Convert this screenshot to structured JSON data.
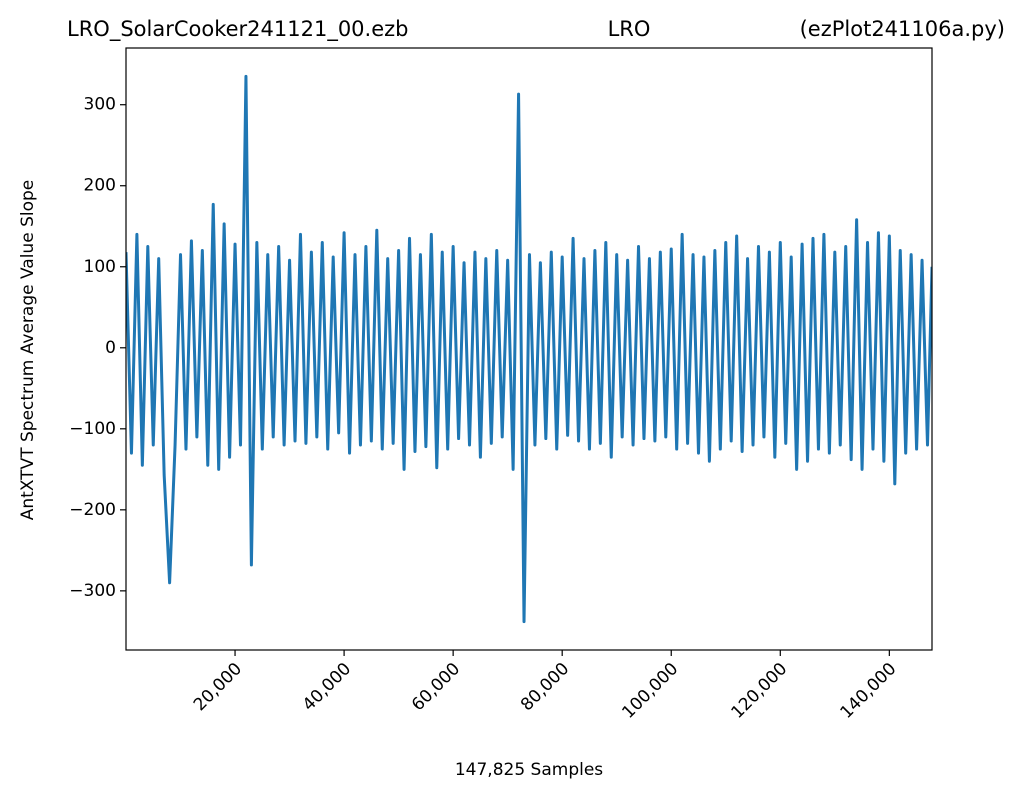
{
  "chart_data": {
    "type": "line",
    "title_left": "LRO_SolarCooker241121_00.ezb",
    "title_center": "LRO",
    "title_right": "(ezPlot241106a.py)",
    "xlabel": "147,825 Samples",
    "ylabel": "AntXTVT Spectrum Average Value Slope",
    "xlim": [
      1,
      147825
    ],
    "ylim": [
      -373,
      370
    ],
    "xticks": [
      {
        "value": 20000,
        "label": "20,000"
      },
      {
        "value": 40000,
        "label": "40,000"
      },
      {
        "value": 60000,
        "label": "60,000"
      },
      {
        "value": 80000,
        "label": "80,000"
      },
      {
        "value": 100000,
        "label": "100,000"
      },
      {
        "value": 120000,
        "label": "120,000"
      },
      {
        "value": 140000,
        "label": "140,000"
      }
    ],
    "yticks": [
      {
        "value": -300,
        "label": "−300"
      },
      {
        "value": -200,
        "label": "−200"
      },
      {
        "value": -100,
        "label": "−100"
      },
      0,
      100,
      200,
      300
    ],
    "x": [
      1,
      1000,
      2000,
      3000,
      4000,
      5000,
      6000,
      7000,
      8000,
      9000,
      10000,
      11000,
      12000,
      13000,
      14000,
      15000,
      16000,
      17000,
      18000,
      19000,
      20000,
      21000,
      22000,
      23000,
      24000,
      25000,
      26000,
      27000,
      28000,
      29000,
      30000,
      31000,
      32000,
      33000,
      34000,
      35000,
      36000,
      37000,
      38000,
      39000,
      40000,
      41000,
      42000,
      43000,
      44000,
      45000,
      46000,
      47000,
      48000,
      49000,
      50000,
      51000,
      52000,
      53000,
      54000,
      55000,
      56000,
      57000,
      58000,
      59000,
      60000,
      61000,
      62000,
      63000,
      64000,
      65000,
      66000,
      67000,
      68000,
      69000,
      70000,
      71000,
      72000,
      73000,
      74000,
      75000,
      76000,
      77000,
      78000,
      79000,
      80000,
      81000,
      82000,
      83000,
      84000,
      85000,
      86000,
      87000,
      88000,
      89000,
      90000,
      91000,
      92000,
      93000,
      94000,
      95000,
      96000,
      97000,
      98000,
      99000,
      100000,
      101000,
      102000,
      103000,
      104000,
      105000,
      106000,
      107000,
      108000,
      109000,
      110000,
      111000,
      112000,
      113000,
      114000,
      115000,
      116000,
      117000,
      118000,
      119000,
      120000,
      121000,
      122000,
      123000,
      124000,
      125000,
      126000,
      127000,
      128000,
      129000,
      130000,
      131000,
      132000,
      133000,
      134000,
      135000,
      136000,
      137000,
      138000,
      139000,
      140000,
      141000,
      142000,
      143000,
      144000,
      145000,
      146000,
      147000,
      147825
    ],
    "series": [
      {
        "color": "#1f77b4",
        "values": [
          118,
          -130,
          140,
          -145,
          125,
          -120,
          110,
          -157,
          -290,
          -120,
          115,
          -125,
          132,
          -110,
          120,
          -145,
          177,
          -150,
          153,
          -135,
          128,
          -120,
          335,
          -268,
          130,
          -125,
          115,
          -110,
          125,
          -120,
          108,
          -115,
          140,
          -118,
          118,
          -110,
          130,
          -125,
          112,
          -105,
          142,
          -130,
          115,
          -120,
          125,
          -115,
          145,
          -125,
          110,
          -118,
          120,
          -150,
          135,
          -128,
          115,
          -122,
          140,
          -148,
          118,
          -125,
          125,
          -112,
          105,
          -120,
          118,
          -135,
          110,
          -118,
          120,
          -110,
          108,
          -150,
          313,
          -338,
          115,
          -120,
          105,
          -112,
          118,
          -125,
          112,
          -108,
          135,
          -115,
          110,
          -125,
          120,
          -118,
          130,
          -135,
          115,
          -110,
          108,
          -120,
          125,
          -112,
          110,
          -115,
          118,
          -110,
          122,
          -125,
          140,
          -118,
          115,
          -130,
          112,
          -140,
          120,
          -125,
          130,
          -115,
          138,
          -128,
          110,
          -120,
          125,
          -110,
          118,
          -135,
          130,
          -118,
          112,
          -150,
          128,
          -140,
          135,
          -125,
          140,
          -130,
          118,
          -120,
          125,
          -138,
          158,
          -150,
          130,
          -125,
          142,
          -140,
          138,
          -168,
          120,
          -130,
          115,
          -125,
          108,
          -120,
          100
        ]
      }
    ]
  }
}
